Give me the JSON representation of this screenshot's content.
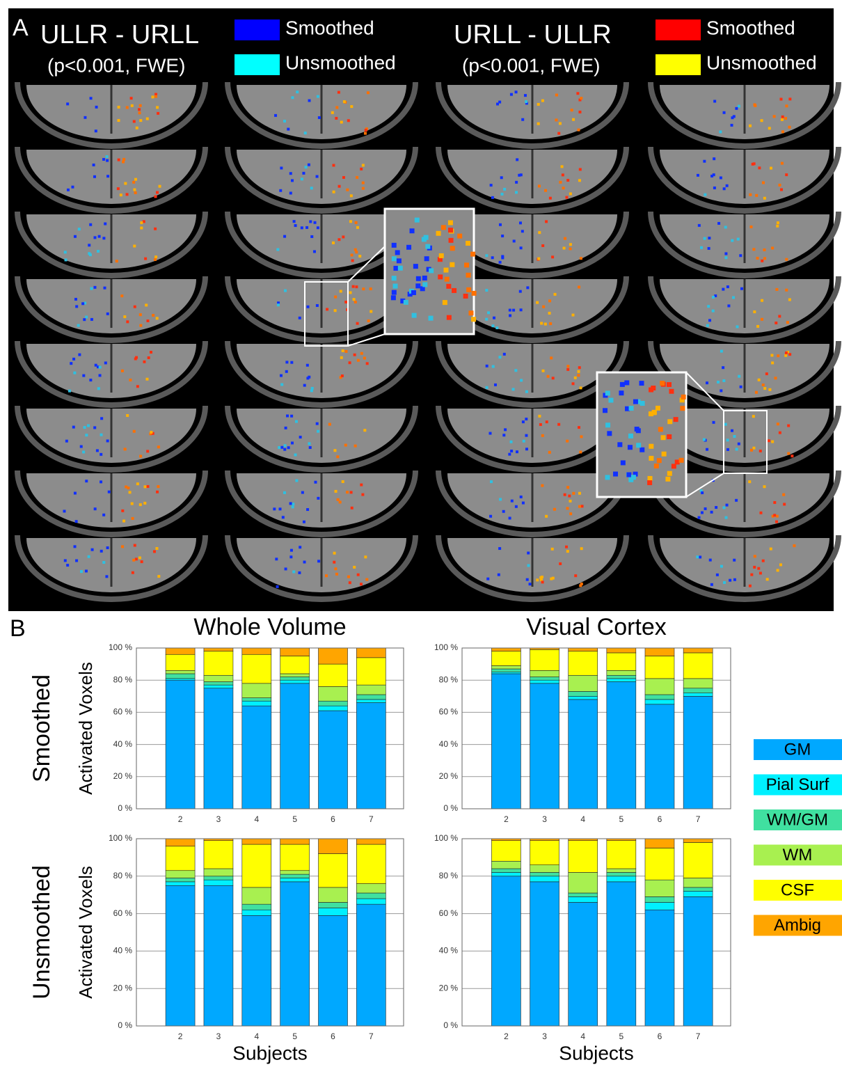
{
  "panel_a": {
    "label": "A",
    "left": {
      "title": "ULLR - URLL",
      "subtitle": "(p<0.001, FWE)",
      "legend": [
        {
          "name": "Smoothed",
          "color": "#0000ff"
        },
        {
          "name": "Unsmoothed",
          "color": "#00ffff"
        }
      ]
    },
    "right": {
      "title": "URLL - ULLR",
      "subtitle": "(p<0.001, FWE)",
      "legend": [
        {
          "name": "Smoothed",
          "color": "#ff0000"
        },
        {
          "name": "Unsmoothed",
          "color": "#ffff00"
        }
      ]
    }
  },
  "panel_b": {
    "label": "B"
  },
  "chart_data": {
    "type": "bar",
    "stacked": true,
    "column_titles": [
      "Whole Volume",
      "Visual Cortex"
    ],
    "row_titles": [
      "Smoothed",
      "Unsmoothed"
    ],
    "ylabel": "Activated Voxels",
    "xlabel": "Subjects",
    "categories": [
      "2",
      "3",
      "4",
      "5",
      "6",
      "7"
    ],
    "ylim": [
      0,
      100
    ],
    "yticks": [
      {
        "value": 0,
        "label": "0 %"
      },
      {
        "value": 20,
        "label": "20 %"
      },
      {
        "value": 40,
        "label": "40 %"
      },
      {
        "value": 60,
        "label": "60 %"
      },
      {
        "value": 80,
        "label": "80 %"
      },
      {
        "value": 100,
        "label": "100 %"
      }
    ],
    "grid": true,
    "series": [
      {
        "name": "GM",
        "color": "#00a8ff",
        "values": [
          [
            80,
            75,
            64,
            78,
            61,
            66
          ],
          [
            84,
            78,
            68,
            79,
            65,
            70
          ],
          [
            75,
            75,
            59,
            77,
            59,
            65
          ],
          [
            80,
            77,
            66,
            77,
            62,
            69
          ]
        ]
      },
      {
        "name": "Pial Surf",
        "color": "#00f0ff",
        "values": [
          [
            1,
            2,
            3,
            2,
            3,
            2
          ],
          [
            1,
            2,
            2,
            2,
            3,
            2
          ],
          [
            2,
            3,
            3,
            2,
            4,
            3
          ],
          [
            2,
            3,
            3,
            3,
            4,
            3
          ]
        ]
      },
      {
        "name": "WM/GM",
        "color": "#40e0a0",
        "values": [
          [
            3,
            2,
            2,
            2,
            3,
            3
          ],
          [
            2,
            2,
            3,
            2,
            3,
            3
          ],
          [
            2,
            2,
            3,
            2,
            3,
            3
          ],
          [
            2,
            2,
            2,
            2,
            3,
            2
          ]
        ]
      },
      {
        "name": "WM",
        "color": "#a8f050",
        "values": [
          [
            2,
            4,
            9,
            2,
            9,
            6
          ],
          [
            2,
            4,
            10,
            3,
            10,
            6
          ],
          [
            4,
            4,
            9,
            2,
            8,
            5
          ],
          [
            4,
            4,
            11,
            2,
            9,
            5
          ]
        ]
      },
      {
        "name": "CSF",
        "color": "#ffff00",
        "values": [
          [
            10,
            15,
            18,
            11,
            14,
            17
          ],
          [
            9,
            13,
            15,
            11,
            14,
            16
          ],
          [
            13,
            15,
            23,
            14,
            18,
            21
          ],
          [
            11,
            13,
            17,
            15,
            17,
            19
          ]
        ]
      },
      {
        "name": "Ambig",
        "color": "#ffa500",
        "values": [
          [
            4,
            2,
            4,
            5,
            10,
            6
          ],
          [
            2,
            1,
            2,
            3,
            5,
            3
          ],
          [
            4,
            1,
            3,
            3,
            8,
            3
          ],
          [
            1,
            1,
            1,
            1,
            5,
            2
          ]
        ]
      }
    ]
  }
}
